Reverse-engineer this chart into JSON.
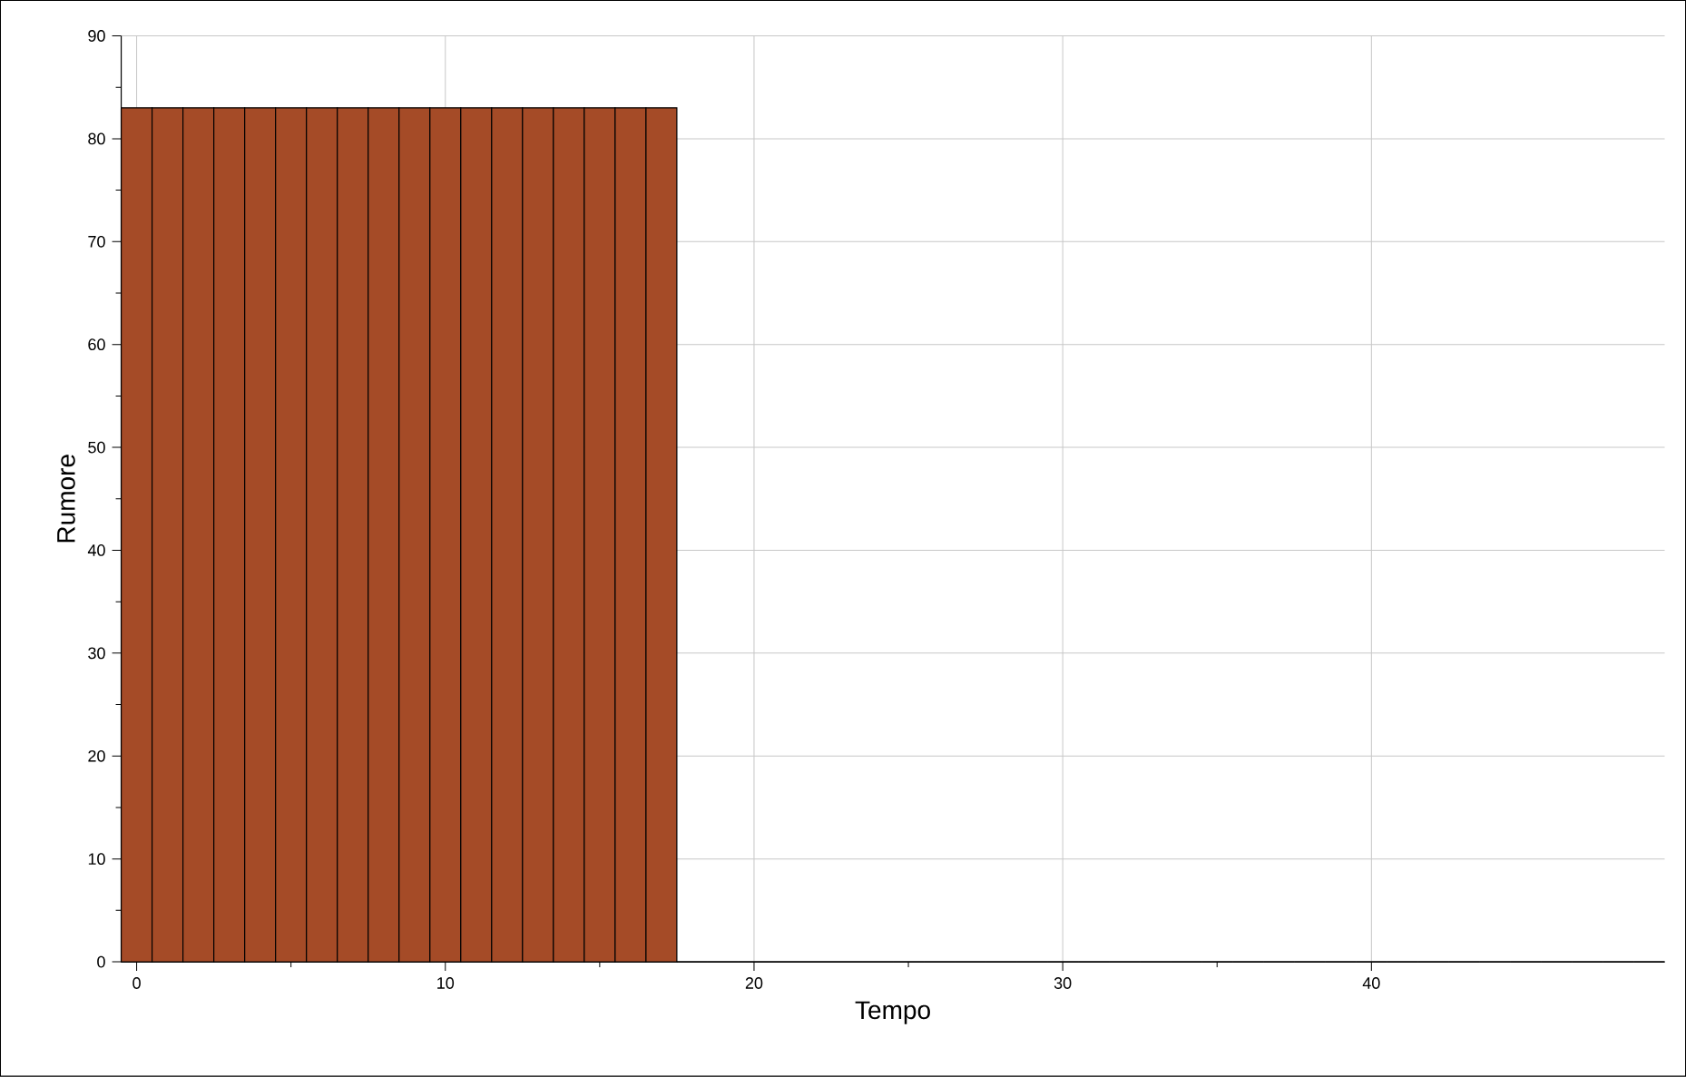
{
  "chart_data": {
    "type": "histogram",
    "xlabel": "Tempo",
    "ylabel": "Rumore",
    "bins": [
      -0.5,
      0.5,
      1.5,
      2.5,
      3.5,
      4.5,
      5.5,
      6.5,
      7.5,
      8.5,
      9.5,
      10.5,
      11.5,
      12.5,
      13.5,
      14.5,
      15.5,
      16.5,
      17.5,
      18.5,
      19.5,
      20.5,
      21.5,
      22.5,
      23.5,
      24.5,
      25.5,
      26.5,
      27.5,
      28.5,
      29.5,
      30.5,
      31.5,
      32.5,
      33.5,
      34.5,
      35.5,
      36.5,
      37.5,
      38.5,
      39.5,
      40.5,
      41.5,
      42.5,
      43.5,
      44.5,
      45.5,
      46.5,
      47.5,
      48.5,
      49.5
    ],
    "values": [
      83,
      83,
      83,
      83,
      83,
      83,
      83,
      83,
      83,
      83,
      83,
      83,
      83,
      83,
      83,
      83,
      83,
      83,
      0,
      0,
      0,
      0,
      0,
      0,
      0,
      0,
      0,
      0,
      0,
      0,
      0,
      0,
      0,
      0,
      0,
      0,
      0,
      0,
      0,
      0,
      0,
      0,
      0,
      0,
      0,
      0,
      0,
      0,
      0,
      0
    ],
    "color": "#a54b27",
    "xlim": [
      -0.5,
      49.5
    ],
    "ylim": [
      0,
      90
    ],
    "xticks": [
      0,
      10,
      20,
      30,
      40
    ],
    "yticks": [
      0,
      10,
      20,
      30,
      40,
      50,
      60,
      70,
      80,
      90
    ],
    "grid": true
  }
}
